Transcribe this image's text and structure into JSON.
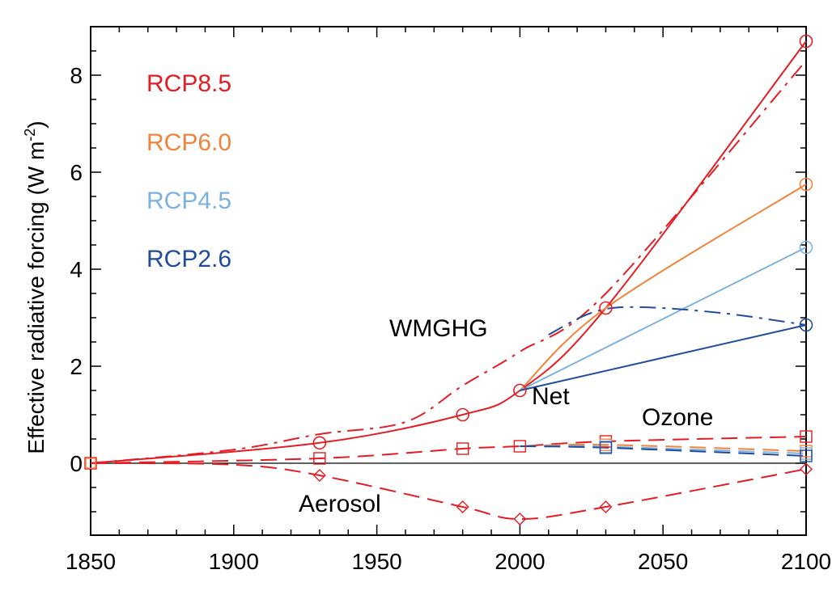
{
  "chart_data": {
    "type": "line",
    "ylabel_main": "Effective radiative forcing (W m",
    "ylabel_sup": "-2",
    "ylabel_close": ")",
    "xlabel": "",
    "xlim": [
      1850,
      2100
    ],
    "ylim": [
      -1.5,
      9
    ],
    "x_ticks": [
      1850,
      1900,
      1950,
      2000,
      2050,
      2100
    ],
    "y_ticks": [
      0,
      2,
      4,
      6,
      8
    ],
    "colors": {
      "rcp85": "#e31d23",
      "rcp60": "#f0843c",
      "rcp45": "#7bb2e0",
      "rcp26": "#1f4c9b",
      "zero_line": "#000000"
    },
    "legend": [
      {
        "label": "RCP8.5",
        "color_key": "rcp85"
      },
      {
        "label": "RCP6.0",
        "color_key": "rcp60"
      },
      {
        "label": "RCP4.5",
        "color_key": "rcp45"
      },
      {
        "label": "RCP2.6",
        "color_key": "rcp26"
      }
    ],
    "annotations": {
      "wmghg": "WMGHG",
      "net": "Net",
      "ozone": "Ozone",
      "aerosol": "Aerosol"
    },
    "series": [
      {
        "name": "Net",
        "scenario": "rcp85",
        "dash": "solid",
        "marker": "circle",
        "x": [
          1850,
          1930,
          1980,
          2000,
          2030,
          2100
        ],
        "y": [
          0,
          0.42,
          1.0,
          1.5,
          3.2,
          8.7
        ]
      },
      {
        "name": "Net",
        "scenario": "rcp60",
        "dash": "solid",
        "marker": "circle",
        "x": [
          2000,
          2030,
          2100
        ],
        "y": [
          1.5,
          3.2,
          5.75
        ]
      },
      {
        "name": "Net",
        "scenario": "rcp45",
        "dash": "solid",
        "marker": "circle",
        "x": [
          2000,
          2100
        ],
        "y": [
          1.5,
          4.45
        ]
      },
      {
        "name": "Net",
        "scenario": "rcp26",
        "dash": "solid",
        "marker": "circle",
        "x": [
          2000,
          2100
        ],
        "y": [
          1.5,
          2.85
        ]
      },
      {
        "name": "WMGHG",
        "scenario": "rcp85",
        "dash": "dashdot",
        "marker": "none",
        "x": [
          1850,
          1900,
          1930,
          1960,
          1980,
          2000,
          2030,
          2100
        ],
        "y": [
          0,
          0.28,
          0.6,
          0.85,
          1.6,
          2.3,
          3.5,
          8.3
        ]
      },
      {
        "name": "WMGHG",
        "scenario": "rcp26",
        "dash": "dashdot",
        "marker": "none",
        "x": [
          2010,
          2025,
          2040,
          2070,
          2100
        ],
        "y": [
          2.65,
          3.1,
          3.22,
          3.1,
          2.85
        ]
      },
      {
        "name": "Ozone",
        "scenario": "rcp85",
        "dash": "dash",
        "marker": "square",
        "x": [
          1850,
          1930,
          1980,
          2000,
          2030,
          2100
        ],
        "y": [
          0,
          0.1,
          0.3,
          0.35,
          0.45,
          0.55
        ]
      },
      {
        "name": "Ozone",
        "scenario": "rcp60",
        "dash": "dash",
        "marker": "square",
        "x": [
          2000,
          2030,
          2100
        ],
        "y": [
          0.35,
          0.38,
          0.25
        ]
      },
      {
        "name": "Ozone",
        "scenario": "rcp45",
        "dash": "dash",
        "marker": "square",
        "x": [
          2000,
          2030,
          2100
        ],
        "y": [
          0.35,
          0.34,
          0.2
        ]
      },
      {
        "name": "Ozone",
        "scenario": "rcp26",
        "dash": "dash",
        "marker": "square",
        "x": [
          2000,
          2030,
          2100
        ],
        "y": [
          0.35,
          0.32,
          0.15
        ]
      },
      {
        "name": "Aerosol",
        "scenario": "rcp85",
        "dash": "dash",
        "marker": "diamond",
        "x": [
          1850,
          1900,
          1930,
          1980,
          2000,
          2030,
          2100
        ],
        "y": [
          0,
          -0.03,
          -0.25,
          -0.9,
          -1.15,
          -0.9,
          -0.12
        ]
      }
    ]
  }
}
